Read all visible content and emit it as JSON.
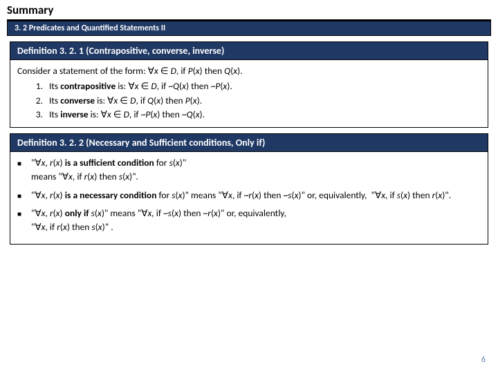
{
  "title": "Summary",
  "section_bar": "3. 2 Predicates and Quantified Statements II",
  "def1": {
    "header": "Definition 3. 2. 1 (Contrapositive, converse, inverse)",
    "intro_prefix": "Consider a statement of the form: ∀",
    "intro_mid": " ∈ ",
    "intro_suffix": ", if ",
    "intro_then": ") then ",
    "intro_end": ").",
    "item1_a": "Its ",
    "item1_b": "contrapositive",
    "item1_c": " is: ∀",
    "item2_b": "converse",
    "item3_b": "inverse"
  },
  "def2": {
    "header": "Definition 3. 2. 2 (Necessary and Sufficient conditions, Only if)"
  },
  "slide_number": "6",
  "colors": {
    "header_bg": "#1f3864",
    "header_text": "#ffffff",
    "body_text": "#000000",
    "slide_num": "#5b7ba5"
  }
}
